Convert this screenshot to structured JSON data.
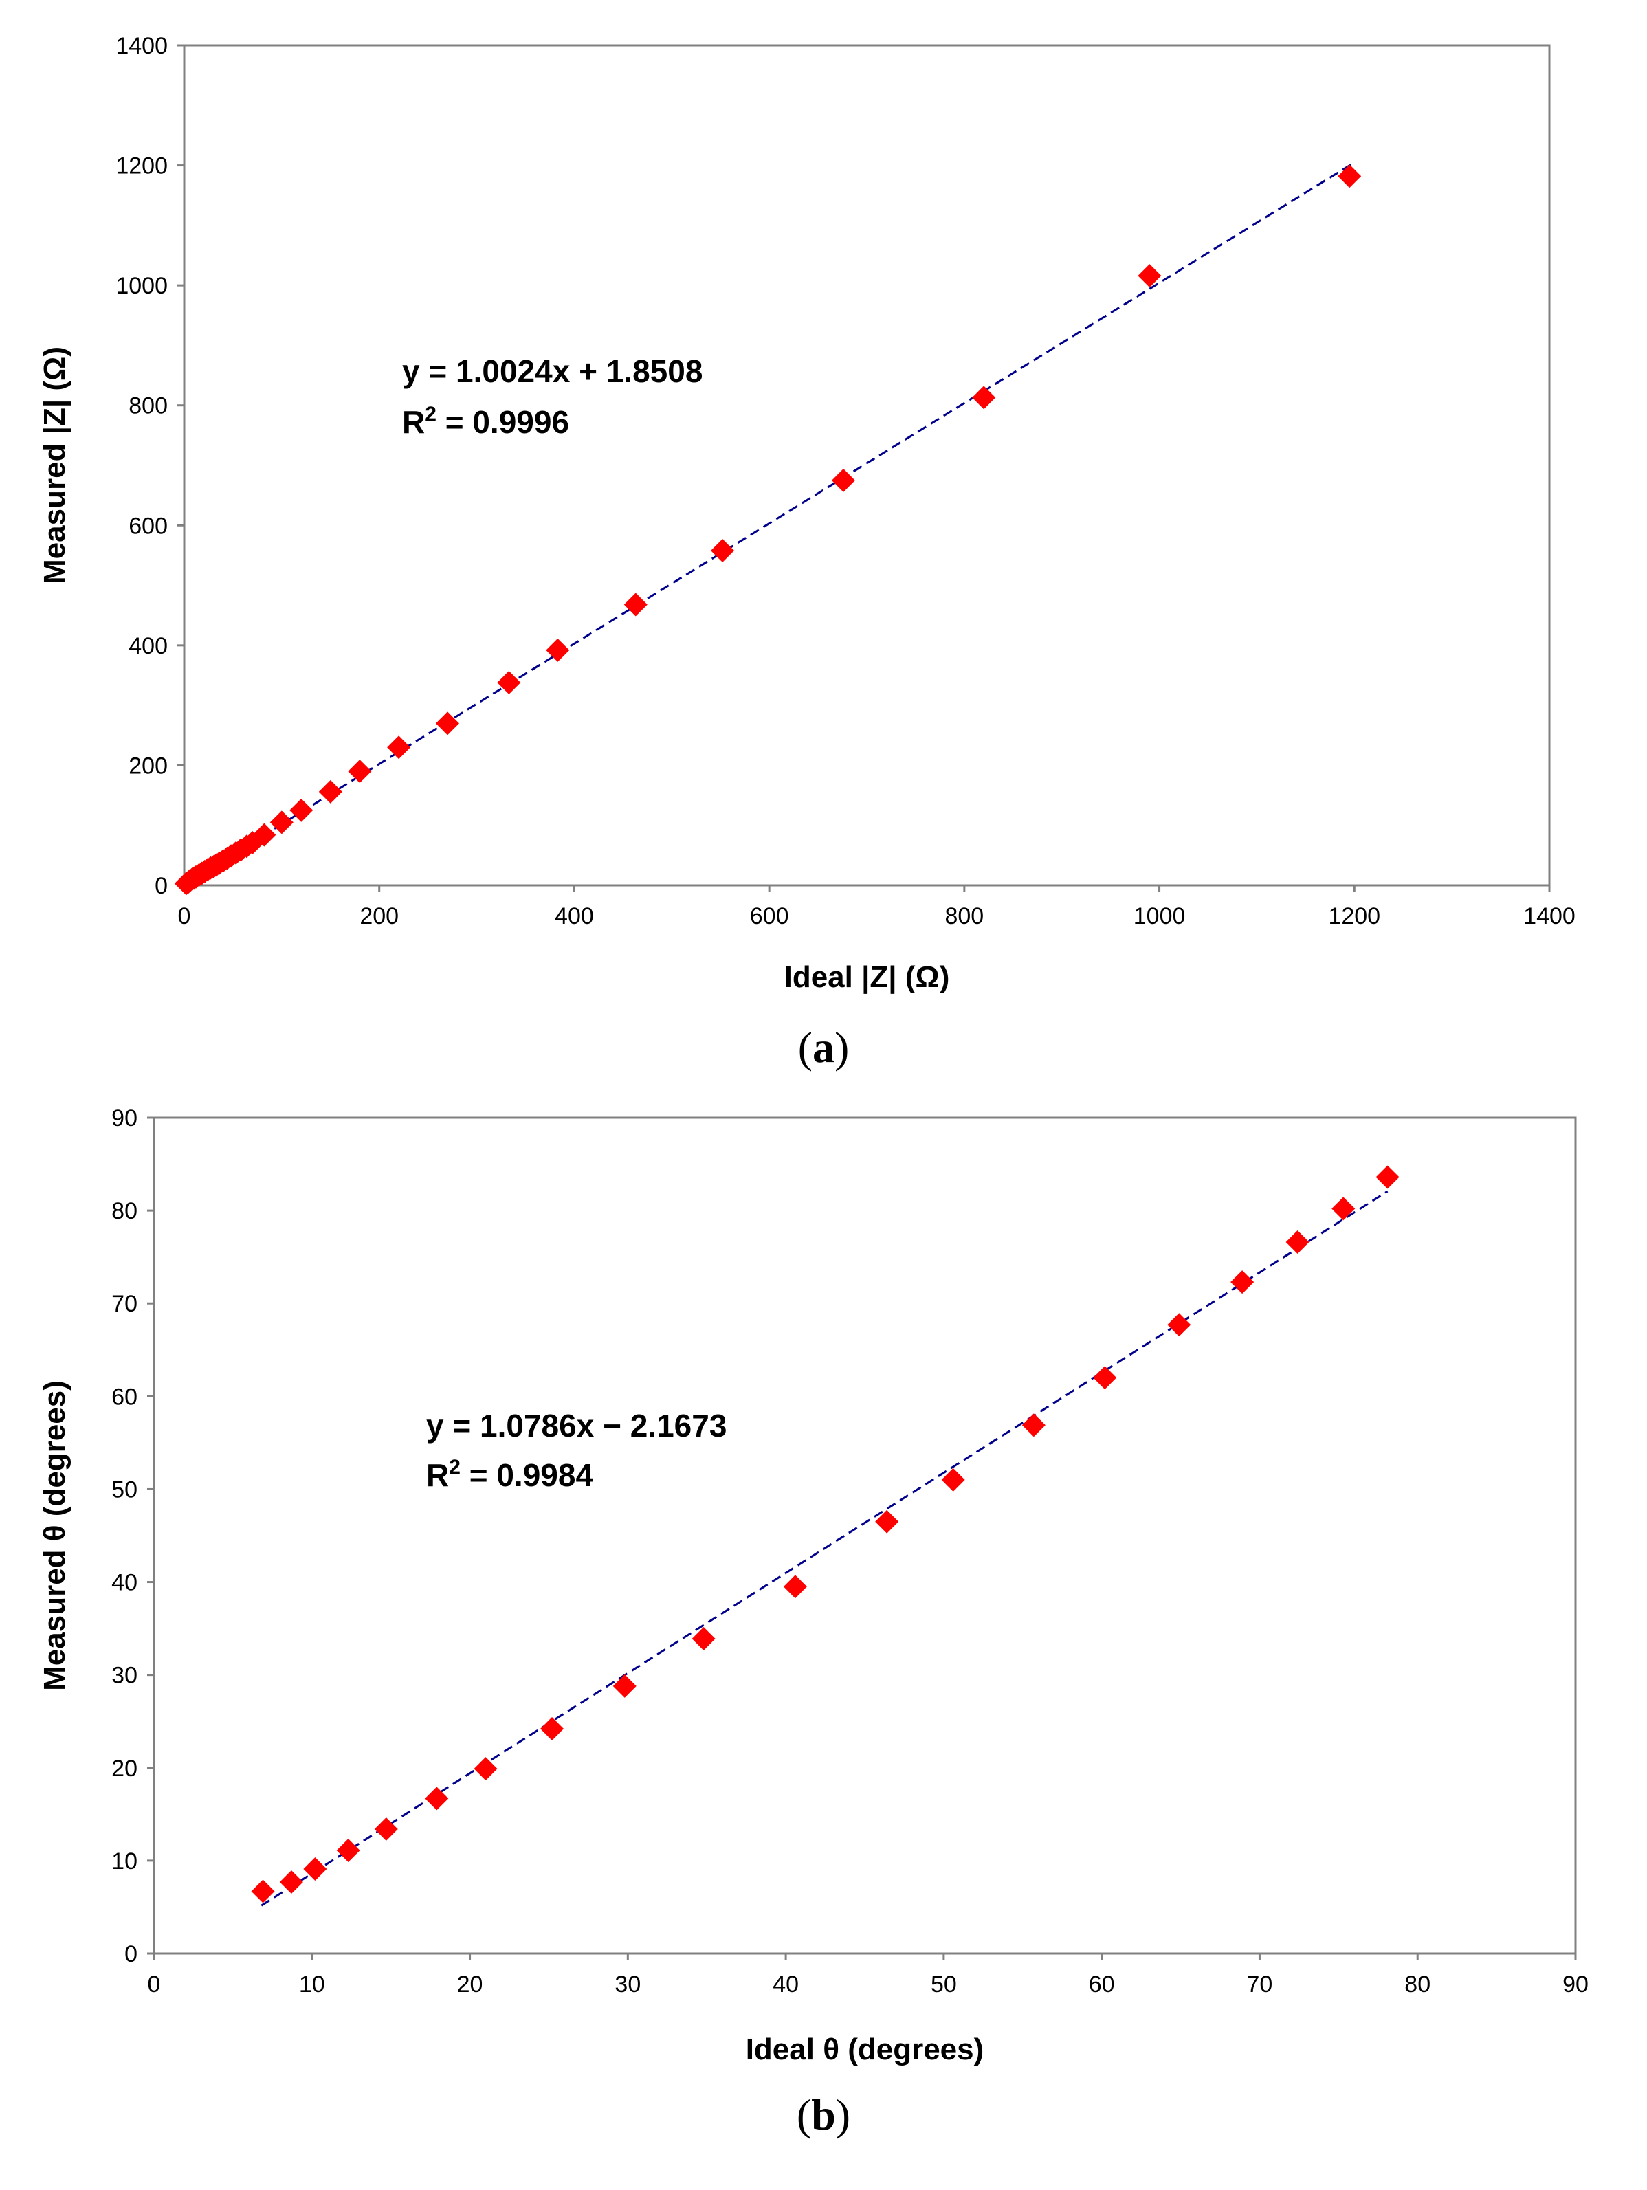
{
  "colors": {
    "marker": "#ff0000",
    "trendline": "#00008b",
    "axis": "#808080"
  },
  "chart_data": [
    {
      "type": "scatter",
      "panel_label": {
        "open": "(",
        "letter": "a",
        "close": ")"
      },
      "xlabel": "Ideal |Z| (Ω)",
      "ylabel": "Measured |Z| (Ω)",
      "xlim": [
        0,
        1400
      ],
      "ylim": [
        0,
        1400
      ],
      "xticks": [
        0,
        200,
        400,
        600,
        800,
        1000,
        1200,
        1400
      ],
      "yticks": [
        0,
        200,
        400,
        600,
        800,
        1000,
        1200,
        1400
      ],
      "grid": false,
      "trendline": {
        "slope": 1.0024,
        "intercept": 1.8508,
        "x_range": [
          0,
          1200
        ]
      },
      "equation": {
        "line1": "y = 1.0024x + 1.8508",
        "r2_prefix": "R",
        "r2_sup": "2",
        "r2_suffix": " = 0.9996"
      },
      "series": [
        {
          "name": "Measured |Z|",
          "x": [
            2,
            4,
            6,
            8,
            10,
            12,
            15,
            18,
            21,
            24,
            27,
            30,
            33,
            36,
            40,
            44,
            48,
            53,
            58,
            64,
            70,
            82,
            100,
            120,
            150,
            180,
            220,
            270,
            333,
            383,
            463,
            552,
            676,
            820,
            990,
            1195
          ],
          "y": [
            3,
            5,
            8,
            10,
            12,
            14,
            17,
            20,
            23,
            26,
            29,
            31,
            34,
            37,
            41,
            45,
            49,
            54,
            59,
            65,
            71,
            84,
            105,
            125,
            156,
            190,
            230,
            270,
            338,
            392,
            468,
            558,
            675,
            813,
            1016,
            1182
          ]
        }
      ]
    },
    {
      "type": "scatter",
      "panel_label": {
        "open": "(",
        "letter": "b",
        "close": ")"
      },
      "xlabel": "Ideal θ (degrees)",
      "ylabel": "Measured θ (degrees)",
      "xlim": [
        0,
        90
      ],
      "ylim": [
        0,
        90
      ],
      "xticks": [
        0,
        10,
        20,
        30,
        40,
        50,
        60,
        70,
        80,
        90
      ],
      "yticks": [
        0,
        10,
        20,
        30,
        40,
        50,
        60,
        70,
        80,
        90
      ],
      "grid": false,
      "trendline": {
        "slope": 1.0786,
        "intercept": -2.1673,
        "x_range": [
          6.8,
          78.1
        ]
      },
      "equation": {
        "line1": "y = 1.0786x − 2.1673",
        "r2_prefix": "R",
        "r2_sup": "2",
        "r2_suffix": " = 0.9984"
      },
      "series": [
        {
          "name": "Measured θ",
          "x": [
            6.9,
            8.7,
            10.2,
            12.3,
            14.7,
            17.9,
            21.0,
            25.2,
            29.8,
            34.8,
            40.6,
            46.4,
            50.6,
            55.7,
            60.2,
            64.9,
            68.9,
            72.4,
            75.3,
            78.1
          ],
          "y": [
            6.7,
            7.7,
            9.1,
            11.1,
            13.4,
            16.7,
            19.9,
            24.2,
            28.8,
            33.9,
            39.5,
            46.5,
            51.0,
            56.9,
            62.0,
            67.7,
            72.3,
            76.6,
            80.2,
            83.6
          ]
        }
      ]
    }
  ]
}
